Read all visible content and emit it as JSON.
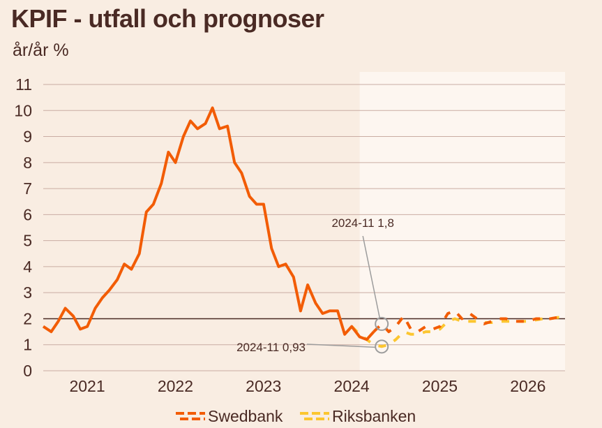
{
  "chart_data": {
    "type": "line",
    "title": "KPIF - utfall och prognoser",
    "ylabel": "år/år %",
    "ylim": [
      0,
      11
    ],
    "yticks": [
      "0",
      "1",
      "2",
      "3",
      "4",
      "5",
      "6",
      "7",
      "8",
      "9",
      "10",
      "11"
    ],
    "xlim": [
      2020.58,
      2026.5
    ],
    "xticks": [
      {
        "label": "2021",
        "value": 2021.0
      },
      {
        "label": "2022",
        "value": 2022.0
      },
      {
        "label": "2023",
        "value": 2023.0
      },
      {
        "label": "2024",
        "value": 2024.0
      },
      {
        "label": "2025",
        "value": 2025.0
      },
      {
        "label": "2026",
        "value": 2026.0
      }
    ],
    "forecast_region_start": 2024.17,
    "reference_line_y": 2,
    "colors": {
      "outcome": "#f25c05",
      "swedbank": "#f25c05",
      "riksbanken": "#fcc630",
      "forecast_bg": "#fdf6f0",
      "grid": "#c9aca3",
      "ref_line": "#4a2a24",
      "annotation": "#9c9c9c"
    },
    "series": [
      {
        "name": "Utfall",
        "style": "solid",
        "x": [
          2020.58,
          2020.67,
          2020.75,
          2020.83,
          2020.92,
          2021.0,
          2021.08,
          2021.17,
          2021.25,
          2021.33,
          2021.42,
          2021.5,
          2021.58,
          2021.67,
          2021.75,
          2021.83,
          2021.92,
          2022.0,
          2022.08,
          2022.17,
          2022.25,
          2022.33,
          2022.42,
          2022.5,
          2022.58,
          2022.67,
          2022.75,
          2022.83,
          2022.92,
          2023.0,
          2023.08,
          2023.17,
          2023.25,
          2023.33,
          2023.42,
          2023.5,
          2023.58,
          2023.67,
          2023.75,
          2023.83,
          2023.92,
          2024.0,
          2024.08,
          2024.17,
          2024.25,
          2024.33
        ],
        "values": [
          1.7,
          1.5,
          1.9,
          2.4,
          2.1,
          1.6,
          1.7,
          2.4,
          2.8,
          3.1,
          3.5,
          4.1,
          3.9,
          4.5,
          6.1,
          6.4,
          7.2,
          8.4,
          8.0,
          9.0,
          9.6,
          9.3,
          9.5,
          10.1,
          9.3,
          9.4,
          8.0,
          7.6,
          6.7,
          6.4,
          6.4,
          4.7,
          4.0,
          4.1,
          3.6,
          2.3,
          3.3,
          2.6,
          2.2,
          2.3,
          2.3,
          1.4,
          1.7,
          1.3,
          1.2,
          1.5
        ]
      },
      {
        "name": "Swedbank",
        "style": "dashed",
        "x": [
          2024.33,
          2024.42,
          2024.5,
          2024.58,
          2024.67,
          2024.75,
          2024.83,
          2024.92,
          2025.0,
          2025.08,
          2025.17,
          2025.25,
          2025.33,
          2025.42,
          2025.5,
          2025.58,
          2025.67,
          2025.75,
          2025.83,
          2025.92,
          2026.0,
          2026.08,
          2026.17,
          2026.25,
          2026.33,
          2026.42,
          2026.5
        ],
        "values": [
          1.5,
          1.8,
          1.5,
          1.7,
          2.1,
          1.6,
          1.5,
          1.7,
          1.6,
          1.7,
          2.2,
          2.3,
          2.0,
          2.2,
          2.0,
          1.8,
          1.9,
          2.0,
          2.0,
          1.9,
          1.9,
          1.9,
          2.0,
          2.0,
          2.0,
          2.05,
          2.0
        ]
      },
      {
        "name": "Riksbanken",
        "style": "dashed",
        "x": [
          2024.08,
          2024.17,
          2024.25,
          2024.33,
          2024.42,
          2024.5,
          2024.58,
          2024.67,
          2024.75,
          2024.83,
          2024.92,
          2025.0,
          2025.08,
          2025.17,
          2025.25,
          2025.33,
          2025.42,
          2025.5,
          2025.58,
          2025.67,
          2025.75,
          2025.83,
          2025.92,
          2026.0,
          2026.08,
          2026.17,
          2026.25,
          2026.33,
          2026.42,
          2026.5
        ],
        "values": [
          1.7,
          1.4,
          1.2,
          1.0,
          0.93,
          1.0,
          1.2,
          1.5,
          1.4,
          1.4,
          1.5,
          1.5,
          1.6,
          1.9,
          2.0,
          1.9,
          1.9,
          1.9,
          1.85,
          1.85,
          1.9,
          1.9,
          1.9,
          1.9,
          1.9,
          1.95,
          2.0,
          2.0,
          2.05,
          2.05
        ]
      }
    ],
    "annotations": [
      {
        "text": "2024-11 1,8",
        "x": 2024.42,
        "y": 1.8
      },
      {
        "text": "2024-11 0,93",
        "x": 2024.42,
        "y": 0.93
      }
    ],
    "legend": [
      "Swedbank",
      "Riksbanken"
    ]
  }
}
